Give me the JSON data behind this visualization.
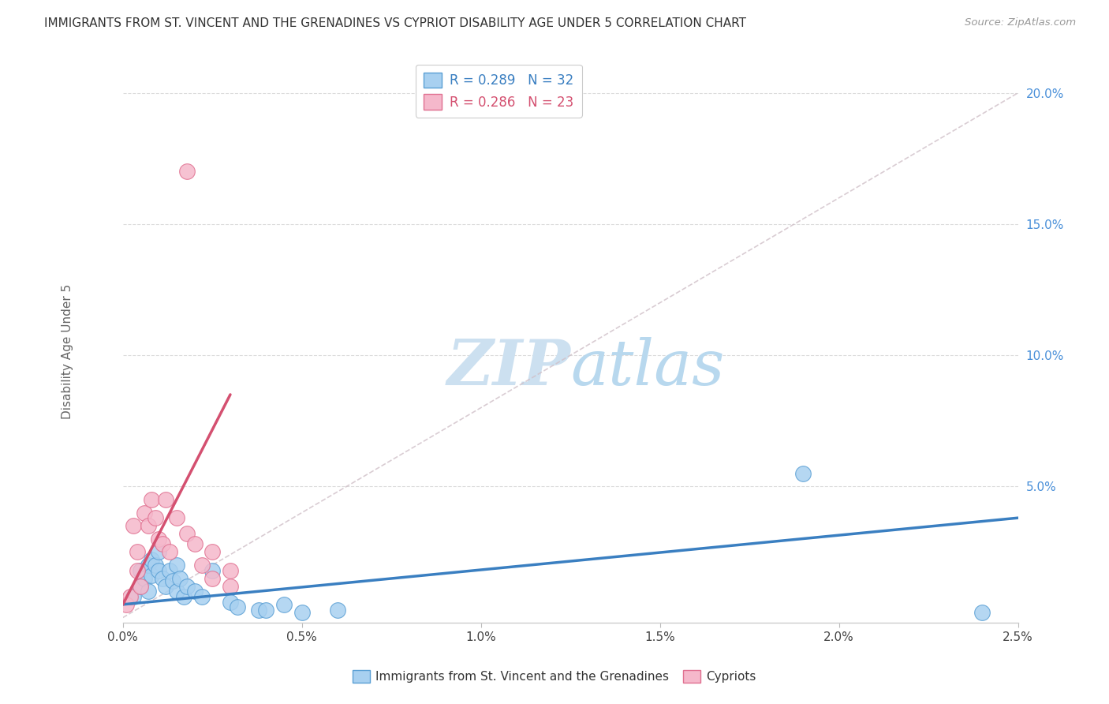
{
  "title": "IMMIGRANTS FROM ST. VINCENT AND THE GRENADINES VS CYPRIOT DISABILITY AGE UNDER 5 CORRELATION CHART",
  "source": "Source: ZipAtlas.com",
  "ylabel": "Disability Age Under 5",
  "xlim": [
    0.0,
    0.025
  ],
  "ylim": [
    -0.002,
    0.205
  ],
  "xticks": [
    0.0,
    0.005,
    0.01,
    0.015,
    0.02,
    0.025
  ],
  "xticklabels": [
    "0.0%",
    "0.5%",
    "1.0%",
    "1.5%",
    "2.0%",
    "2.5%"
  ],
  "yticks": [
    0.0,
    0.05,
    0.1,
    0.15,
    0.2
  ],
  "yticklabels": [
    "",
    "5.0%",
    "10.0%",
    "15.0%",
    "20.0%"
  ],
  "blue_fill": "#a8d0f0",
  "blue_edge": "#5a9fd4",
  "pink_fill": "#f5b8cb",
  "pink_edge": "#e07090",
  "blue_line": "#3a7fc1",
  "pink_line": "#d45070",
  "ref_line_color": "#d0c0c8",
  "grid_color": "#d8d8d8",
  "watermark_color": "#cce0f0",
  "legend_r1": "R = 0.289",
  "legend_n1": "N = 32",
  "legend_r2": "R = 0.286",
  "legend_n2": "N = 23",
  "legend_label1": "Immigrants from St. Vincent and the Grenadines",
  "legend_label2": "Cypriots",
  "blue_x": [
    0.0003,
    0.0005,
    0.0005,
    0.0006,
    0.0007,
    0.0007,
    0.0008,
    0.0008,
    0.0009,
    0.001,
    0.001,
    0.0011,
    0.0012,
    0.0013,
    0.0014,
    0.0015,
    0.0015,
    0.0016,
    0.0017,
    0.0018,
    0.002,
    0.0022,
    0.0025,
    0.003,
    0.0032,
    0.0038,
    0.004,
    0.0045,
    0.005,
    0.006,
    0.019,
    0.024
  ],
  "blue_y": [
    0.008,
    0.012,
    0.018,
    0.015,
    0.02,
    0.01,
    0.016,
    0.022,
    0.02,
    0.025,
    0.018,
    0.015,
    0.012,
    0.018,
    0.014,
    0.01,
    0.02,
    0.015,
    0.008,
    0.012,
    0.01,
    0.008,
    0.018,
    0.006,
    0.004,
    0.003,
    0.003,
    0.005,
    0.002,
    0.003,
    0.055,
    0.002
  ],
  "pink_x": [
    0.0001,
    0.0002,
    0.0003,
    0.0004,
    0.0004,
    0.0005,
    0.0006,
    0.0007,
    0.0008,
    0.0009,
    0.001,
    0.0011,
    0.0012,
    0.0013,
    0.0015,
    0.0018,
    0.002,
    0.0022,
    0.0025,
    0.0025,
    0.003,
    0.003,
    0.0018
  ],
  "pink_y": [
    0.005,
    0.008,
    0.035,
    0.018,
    0.025,
    0.012,
    0.04,
    0.035,
    0.045,
    0.038,
    0.03,
    0.028,
    0.045,
    0.025,
    0.038,
    0.032,
    0.028,
    0.02,
    0.015,
    0.025,
    0.018,
    0.012,
    0.17
  ],
  "blue_trend_x0": 0.0,
  "blue_trend_x1": 0.025,
  "blue_trend_y0": 0.005,
  "blue_trend_y1": 0.038,
  "pink_trend_x0": 0.0,
  "pink_trend_x1": 0.003,
  "pink_trend_y0": 0.005,
  "pink_trend_y1": 0.085
}
